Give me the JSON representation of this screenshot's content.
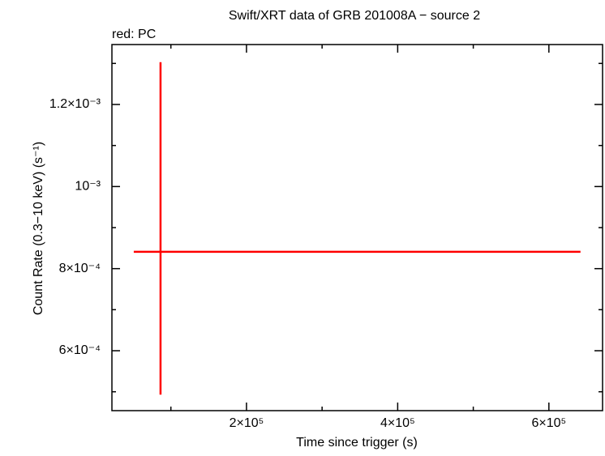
{
  "chart_data": {
    "type": "errorbar",
    "title": "Swift/XRT data of GRB 201008A − source 2",
    "annotation": "red: PC",
    "xlabel": "Time since trigger (s)",
    "ylabel": "Count Rate (0.3−10 keV) (s⁻¹)",
    "xlim": [
      22000,
      671000
    ],
    "ylim": [
      0.000454,
      0.001346
    ],
    "xticks": [
      {
        "value": 200000,
        "label": "2×10⁵"
      },
      {
        "value": 400000,
        "label": "4×10⁵"
      },
      {
        "value": 600000,
        "label": "6×10⁵"
      }
    ],
    "xminorticks": [
      100000,
      300000,
      500000
    ],
    "yticks": [
      {
        "value": 0.0006,
        "label": "6×10⁻⁴"
      },
      {
        "value": 0.0008,
        "label": "8×10⁻⁴"
      },
      {
        "value": 0.001,
        "label": "10⁻³"
      },
      {
        "value": 0.0012,
        "label": "1.2×10⁻³"
      }
    ],
    "yminorticks": [
      0.0005,
      0.0007,
      0.0009,
      0.0011,
      0.0013
    ],
    "series": [
      {
        "color": "#ff0000",
        "x": [
          86300
        ],
        "xerr_minus": [
          35400
        ],
        "xerr_plus": [
          555500
        ],
        "values": [
          0.000841
        ],
        "yerr_minus": [
          0.000348
        ],
        "yerr_plus": [
          0.000462
        ]
      }
    ]
  }
}
